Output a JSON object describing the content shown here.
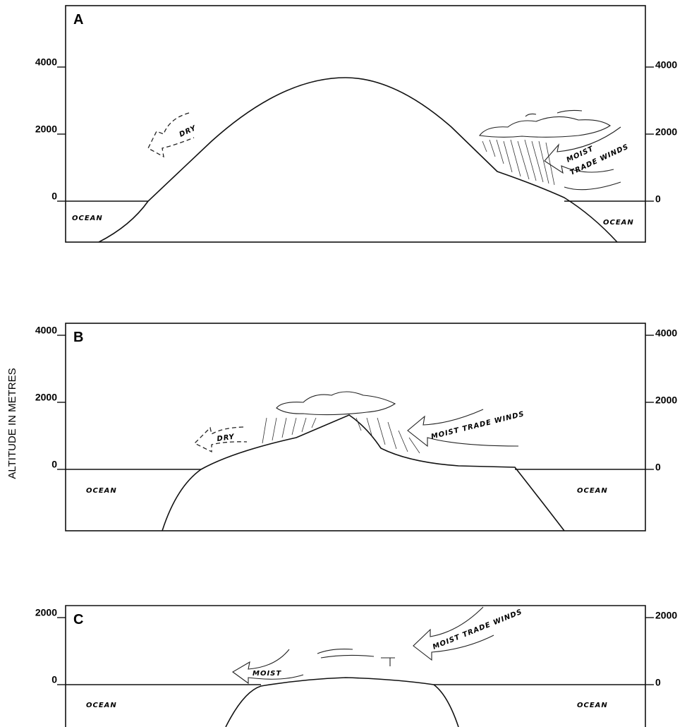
{
  "y_axis_title": "ALTITUDE IN METRES",
  "panels": [
    {
      "label": "A",
      "ticks": [
        4000,
        2000,
        0
      ],
      "dry": "DRY",
      "moist": "MOIST",
      "trade_winds": "TRADE WINDS",
      "ocean_left": "OCEAN",
      "ocean_right": "OCEAN"
    },
    {
      "label": "B",
      "ticks": [
        4000,
        2000,
        0
      ],
      "dry": "DRY",
      "moist_trade_winds": "MOIST TRADE WINDS",
      "ocean_left": "OCEAN",
      "ocean_right": "OCEAN"
    },
    {
      "label": "C",
      "ticks": [
        2000,
        0
      ],
      "moist": "MOIST",
      "moist_trade_winds": "MOIST TRADE WINDS",
      "ocean_left": "OCEAN",
      "ocean_right": "OCEAN"
    }
  ]
}
